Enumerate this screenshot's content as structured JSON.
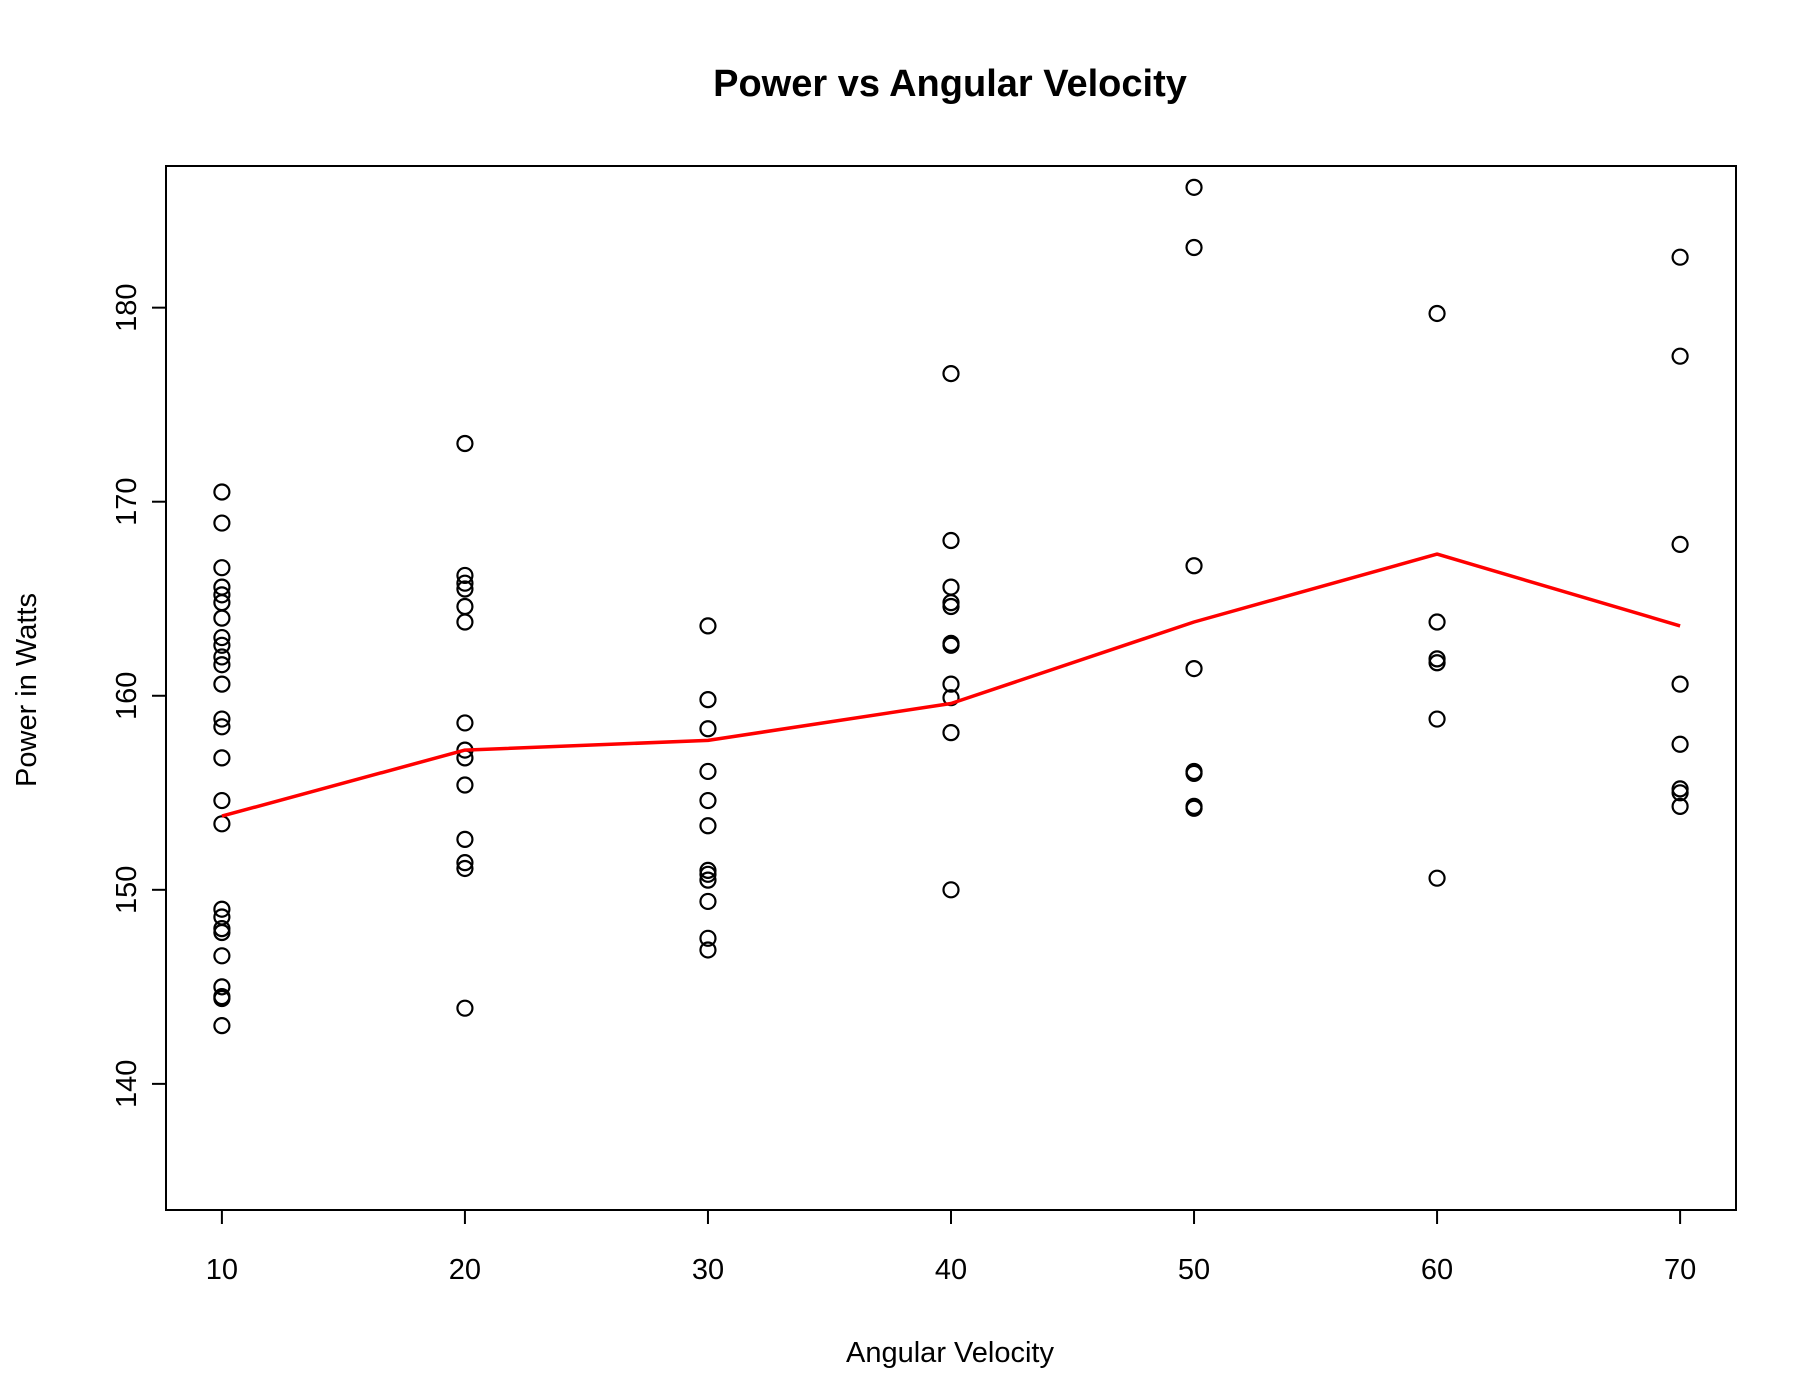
{
  "chart_data": {
    "type": "scatter",
    "title": "Power vs Angular Velocity",
    "xlabel": "Angular Velocity",
    "ylabel": "Power in Watts",
    "xlim": [
      7.7,
      72.3
    ],
    "ylim": [
      133.5,
      187.3
    ],
    "x_ticks": [
      "10",
      "20",
      "30",
      "40",
      "50",
      "60",
      "70"
    ],
    "y_ticks": [
      "140",
      "150",
      "160",
      "170",
      "180"
    ],
    "grid": false,
    "legend": "none",
    "point_color": "#000000",
    "line_color": "#ff0000",
    "series": [
      {
        "kind": "points",
        "points": [
          [
            10,
            170.5
          ],
          [
            10,
            168.9
          ],
          [
            10,
            166.6
          ],
          [
            10,
            165.6
          ],
          [
            10,
            165.2
          ],
          [
            10,
            164.8
          ],
          [
            10,
            164.0
          ],
          [
            10,
            163.0
          ],
          [
            10,
            162.6
          ],
          [
            10,
            162.0
          ],
          [
            10,
            161.6
          ],
          [
            10,
            160.6
          ],
          [
            10,
            158.8
          ],
          [
            10,
            158.4
          ],
          [
            10,
            156.8
          ],
          [
            10,
            154.6
          ],
          [
            10,
            153.4
          ],
          [
            10,
            149.0
          ],
          [
            10,
            148.6
          ],
          [
            10,
            148.0
          ],
          [
            10,
            147.8
          ],
          [
            10,
            146.6
          ],
          [
            10,
            145.0
          ],
          [
            10,
            144.5
          ],
          [
            10,
            144.4
          ],
          [
            10,
            143.0
          ],
          [
            20,
            173.0
          ],
          [
            20,
            166.2
          ],
          [
            20,
            165.8
          ],
          [
            20,
            165.5
          ],
          [
            20,
            164.6
          ],
          [
            20,
            163.8
          ],
          [
            20,
            158.6
          ],
          [
            20,
            157.2
          ],
          [
            20,
            156.8
          ],
          [
            20,
            155.4
          ],
          [
            20,
            152.6
          ],
          [
            20,
            151.4
          ],
          [
            20,
            151.1
          ],
          [
            20,
            143.9
          ],
          [
            30,
            163.6
          ],
          [
            30,
            159.8
          ],
          [
            30,
            158.3
          ],
          [
            30,
            156.1
          ],
          [
            30,
            154.6
          ],
          [
            30,
            153.3
          ],
          [
            30,
            151.0
          ],
          [
            30,
            150.8
          ],
          [
            30,
            150.5
          ],
          [
            30,
            149.4
          ],
          [
            30,
            147.5
          ],
          [
            30,
            146.9
          ],
          [
            40,
            176.6
          ],
          [
            40,
            168.0
          ],
          [
            40,
            165.6
          ],
          [
            40,
            164.8
          ],
          [
            40,
            164.6
          ],
          [
            40,
            162.7
          ],
          [
            40,
            162.6
          ],
          [
            40,
            160.6
          ],
          [
            40,
            159.9
          ],
          [
            40,
            158.1
          ],
          [
            40,
            150.0
          ],
          [
            50,
            186.2
          ],
          [
            50,
            183.1
          ],
          [
            50,
            166.7
          ],
          [
            50,
            161.4
          ],
          [
            50,
            156.1
          ],
          [
            50,
            156.0
          ],
          [
            50,
            154.3
          ],
          [
            50,
            154.2
          ],
          [
            60,
            179.7
          ],
          [
            60,
            163.8
          ],
          [
            60,
            161.9
          ],
          [
            60,
            161.7
          ],
          [
            60,
            158.8
          ],
          [
            60,
            150.6
          ],
          [
            70,
            182.6
          ],
          [
            70,
            177.5
          ],
          [
            70,
            167.8
          ],
          [
            70,
            160.6
          ],
          [
            70,
            157.5
          ],
          [
            70,
            155.2
          ],
          [
            70,
            155.0
          ],
          [
            70,
            154.3
          ]
        ]
      },
      {
        "kind": "line",
        "x": [
          10,
          20,
          30,
          40,
          50,
          60,
          70
        ],
        "y": [
          153.8,
          157.2,
          157.7,
          159.6,
          163.8,
          167.3,
          163.6
        ]
      }
    ]
  }
}
